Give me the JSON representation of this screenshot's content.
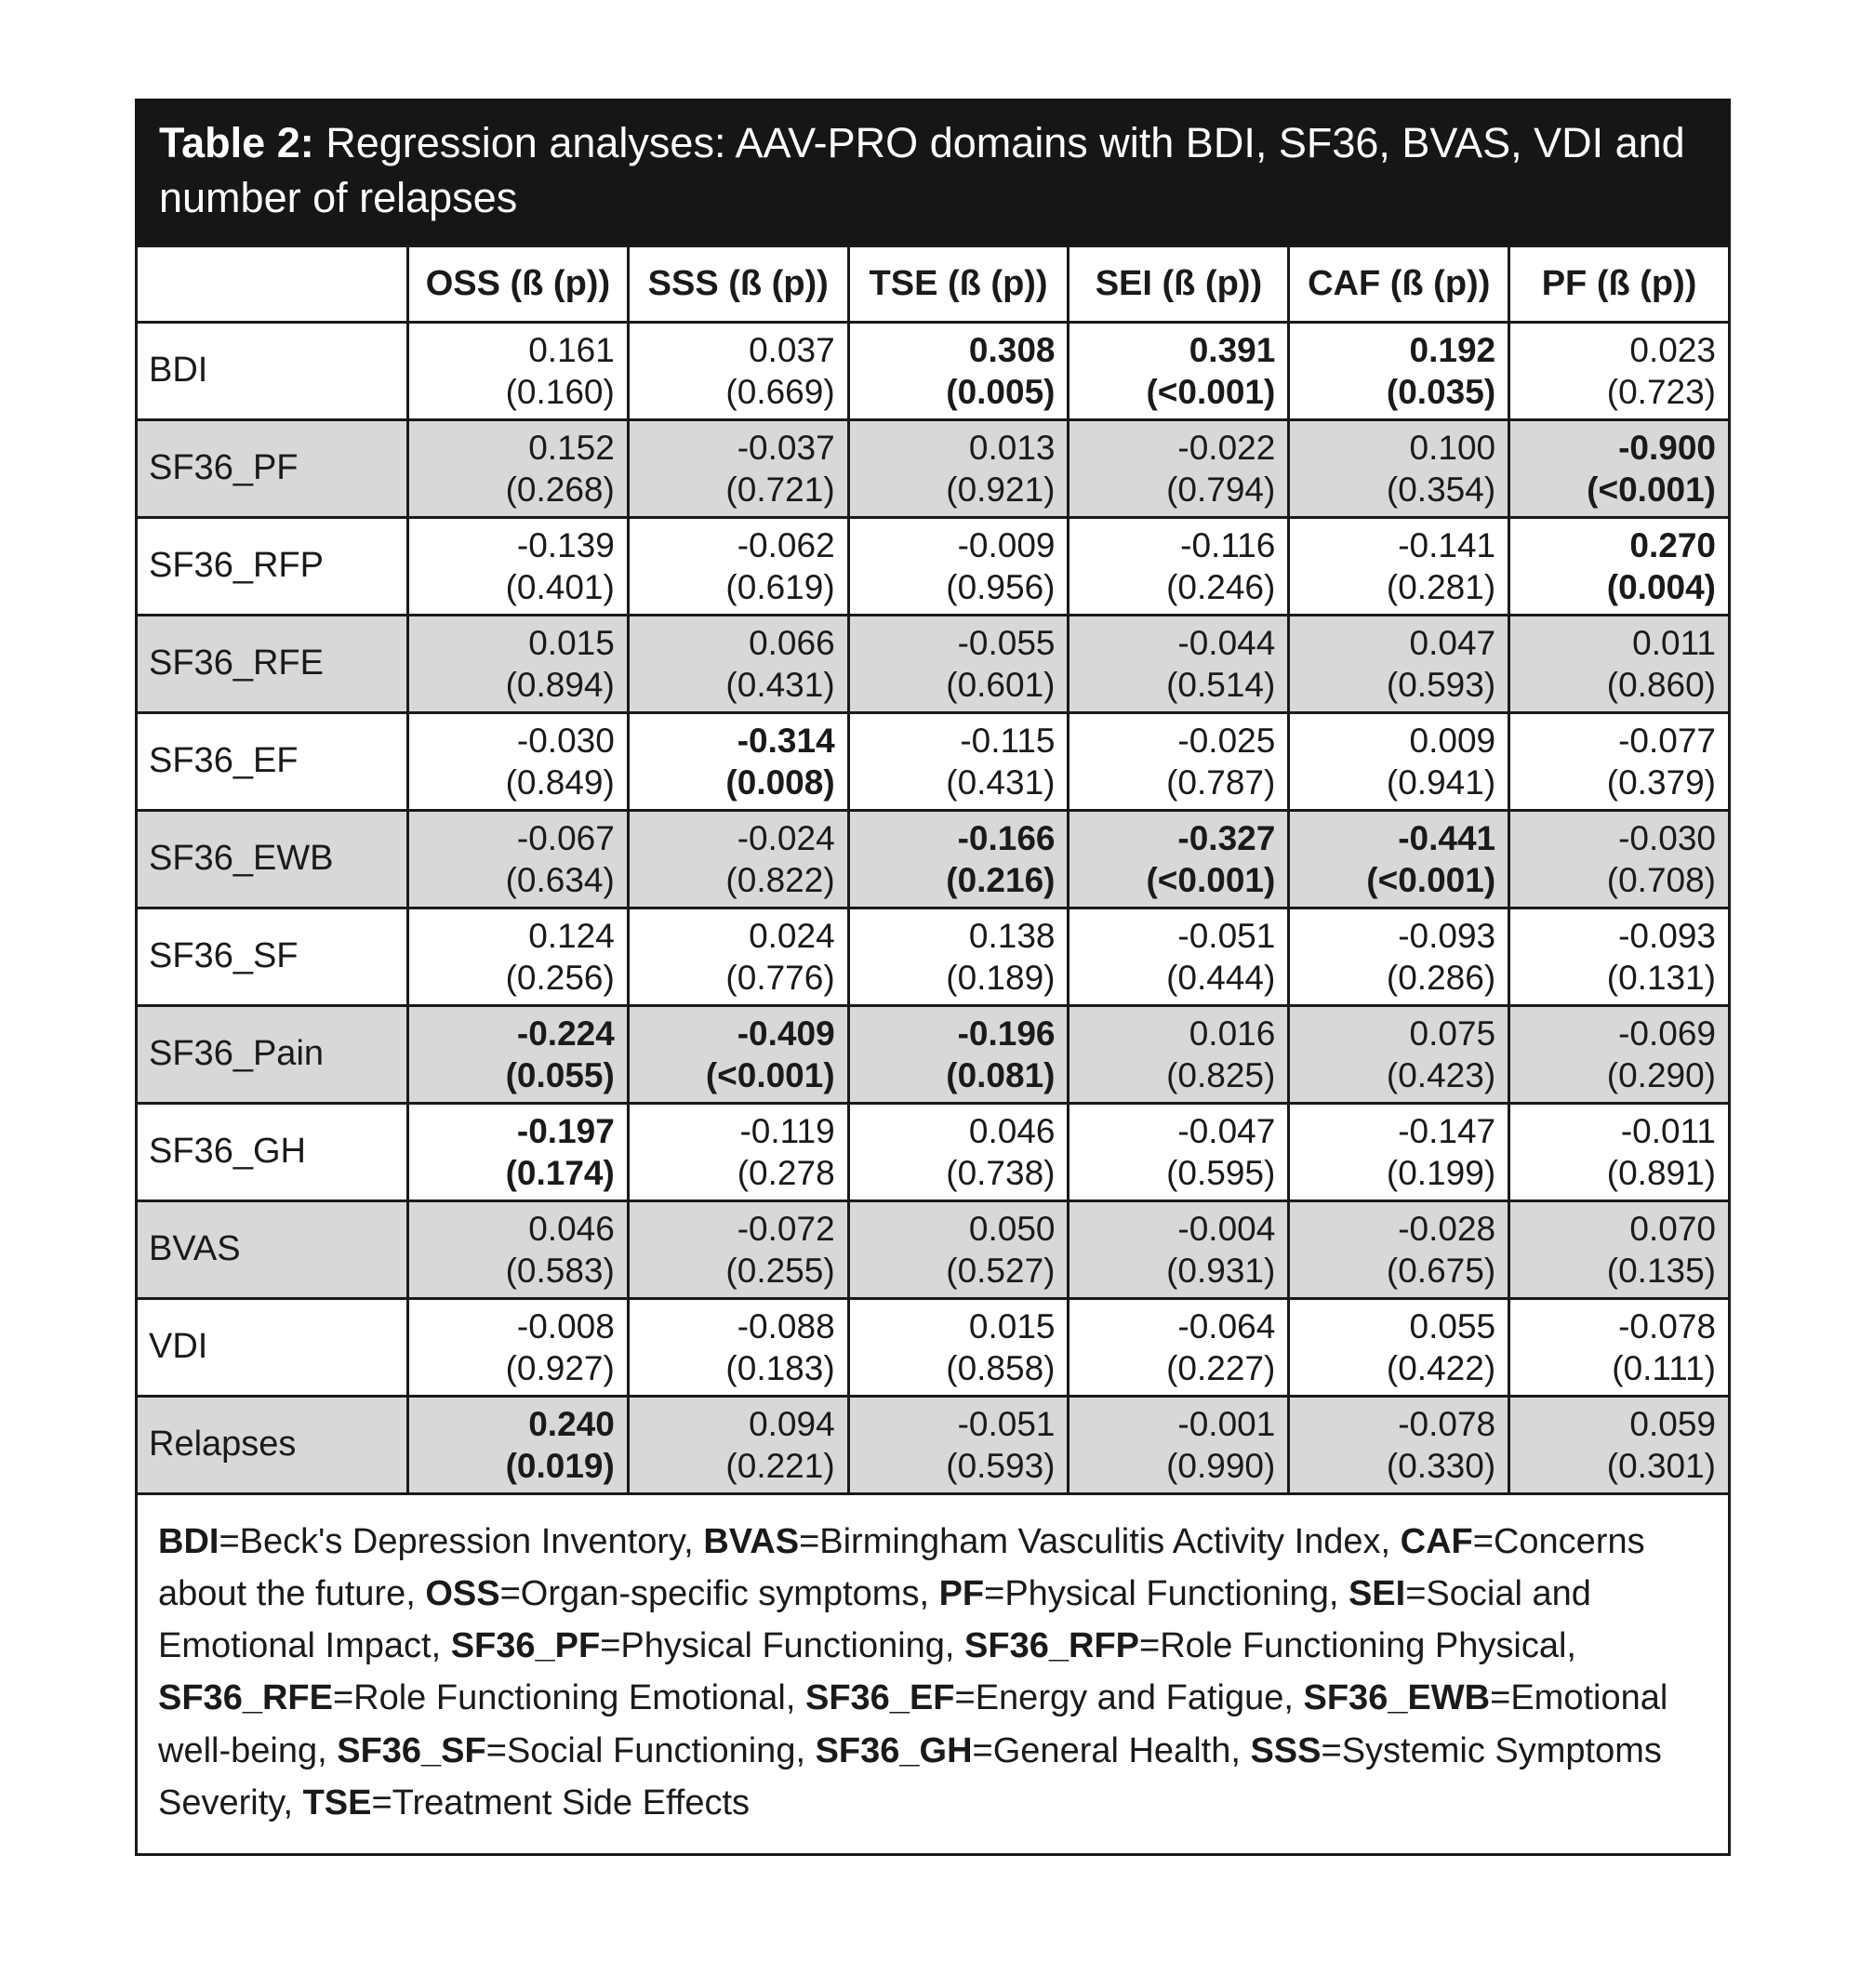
{
  "colors": {
    "title_bg": "#161616",
    "row_shade": "#d8d8d8",
    "border_ink": "#1a1a1a"
  },
  "title": {
    "label": "Table 2:",
    "rest": " Regression analyses: AAV-PRO domains with BDI, SF36, BVAS, VDI and number of relapses"
  },
  "table": {
    "header": [
      "",
      "OSS (ß (p))",
      "SSS (ß (p))",
      "TSE (ß (p))",
      "SEI (ß (p))",
      "CAF (ß (p))",
      "PF (ß (p))"
    ],
    "rows": [
      {
        "label": "BDI",
        "shaded": false,
        "cells": [
          {
            "beta": "0.161",
            "p": "(0.160)",
            "bold": false
          },
          {
            "beta": "0.037",
            "p": "(0.669)",
            "bold": false
          },
          {
            "beta": "0.308",
            "p": "(0.005)",
            "bold": true
          },
          {
            "beta": "0.391",
            "p": "(<0.001)",
            "bold": true
          },
          {
            "beta": "0.192",
            "p": "(0.035)",
            "bold": true
          },
          {
            "beta": "0.023",
            "p": "(0.723)",
            "bold": false
          }
        ]
      },
      {
        "label": "SF36_PF",
        "shaded": true,
        "cells": [
          {
            "beta": "0.152",
            "p": "(0.268)",
            "bold": false
          },
          {
            "beta": "-0.037",
            "p": "(0.721)",
            "bold": false
          },
          {
            "beta": "0.013",
            "p": "(0.921)",
            "bold": false
          },
          {
            "beta": "-0.022",
            "p": "(0.794)",
            "bold": false
          },
          {
            "beta": "0.100",
            "p": "(0.354)",
            "bold": false
          },
          {
            "beta": "-0.900",
            "p": "(<0.001)",
            "bold": true
          }
        ]
      },
      {
        "label": "SF36_RFP",
        "shaded": false,
        "cells": [
          {
            "beta": "-0.139",
            "p": "(0.401)",
            "bold": false
          },
          {
            "beta": "-0.062",
            "p": "(0.619)",
            "bold": false
          },
          {
            "beta": "-0.009",
            "p": "(0.956)",
            "bold": false
          },
          {
            "beta": "-0.116",
            "p": "(0.246)",
            "bold": false
          },
          {
            "beta": "-0.141",
            "p": "(0.281)",
            "bold": false
          },
          {
            "beta": "0.270",
            "p": "(0.004)",
            "bold": true
          }
        ]
      },
      {
        "label": "SF36_RFE",
        "shaded": true,
        "cells": [
          {
            "beta": "0.015",
            "p": "(0.894)",
            "bold": false
          },
          {
            "beta": "0.066",
            "p": "(0.431)",
            "bold": false
          },
          {
            "beta": "-0.055",
            "p": "(0.601)",
            "bold": false
          },
          {
            "beta": "-0.044",
            "p": "(0.514)",
            "bold": false
          },
          {
            "beta": "0.047",
            "p": "(0.593)",
            "bold": false
          },
          {
            "beta": "0.011",
            "p": "(0.860)",
            "bold": false
          }
        ]
      },
      {
        "label": "SF36_EF",
        "shaded": false,
        "cells": [
          {
            "beta": "-0.030",
            "p": "(0.849)",
            "bold": false
          },
          {
            "beta": "-0.314",
            "p": "(0.008)",
            "bold": true
          },
          {
            "beta": "-0.115",
            "p": "(0.431)",
            "bold": false
          },
          {
            "beta": "-0.025",
            "p": "(0.787)",
            "bold": false
          },
          {
            "beta": "0.009",
            "p": "(0.941)",
            "bold": false
          },
          {
            "beta": "-0.077",
            "p": "(0.379)",
            "bold": false
          }
        ]
      },
      {
        "label": "SF36_EWB",
        "shaded": true,
        "cells": [
          {
            "beta": "-0.067",
            "p": "(0.634)",
            "bold": false
          },
          {
            "beta": "-0.024",
            "p": "(0.822)",
            "bold": false
          },
          {
            "beta": "-0.166",
            "p": "(0.216)",
            "bold": true
          },
          {
            "beta": "-0.327",
            "p": "(<0.001)",
            "bold": true
          },
          {
            "beta": "-0.441",
            "p": "(<0.001)",
            "bold": true
          },
          {
            "beta": "-0.030",
            "p": "(0.708)",
            "bold": false
          }
        ]
      },
      {
        "label": "SF36_SF",
        "shaded": false,
        "cells": [
          {
            "beta": "0.124",
            "p": "(0.256)",
            "bold": false
          },
          {
            "beta": "0.024",
            "p": "(0.776)",
            "bold": false
          },
          {
            "beta": "0.138",
            "p": "(0.189)",
            "bold": false
          },
          {
            "beta": "-0.051",
            "p": "(0.444)",
            "bold": false
          },
          {
            "beta": "-0.093",
            "p": "(0.286)",
            "bold": false
          },
          {
            "beta": "-0.093",
            "p": "(0.131)",
            "bold": false
          }
        ]
      },
      {
        "label": "SF36_Pain",
        "shaded": true,
        "cells": [
          {
            "beta": "-0.224",
            "p": "(0.055)",
            "bold": true
          },
          {
            "beta": "-0.409",
            "p": "(<0.001)",
            "bold": true
          },
          {
            "beta": "-0.196",
            "p": "(0.081)",
            "bold": true
          },
          {
            "beta": "0.016",
            "p": "(0.825)",
            "bold": false
          },
          {
            "beta": "0.075",
            "p": "(0.423)",
            "bold": false
          },
          {
            "beta": "-0.069",
            "p": "(0.290)",
            "bold": false
          }
        ]
      },
      {
        "label": "SF36_GH",
        "shaded": false,
        "cells": [
          {
            "beta": "-0.197",
            "p": "(0.174)",
            "bold": true
          },
          {
            "beta": "-0.119",
            "p": "(0.278",
            "bold": false
          },
          {
            "beta": "0.046",
            "p": "(0.738)",
            "bold": false
          },
          {
            "beta": "-0.047",
            "p": "(0.595)",
            "bold": false
          },
          {
            "beta": "-0.147",
            "p": "(0.199)",
            "bold": false
          },
          {
            "beta": "-0.011",
            "p": "(0.891)",
            "bold": false
          }
        ]
      },
      {
        "label": "BVAS",
        "shaded": true,
        "cells": [
          {
            "beta": "0.046",
            "p": "(0.583)",
            "bold": false
          },
          {
            "beta": "-0.072",
            "p": "(0.255)",
            "bold": false
          },
          {
            "beta": "0.050",
            "p": "(0.527)",
            "bold": false
          },
          {
            "beta": "-0.004",
            "p": "(0.931)",
            "bold": false
          },
          {
            "beta": "-0.028",
            "p": "(0.675)",
            "bold": false
          },
          {
            "beta": "0.070",
            "p": "(0.135)",
            "bold": false
          }
        ]
      },
      {
        "label": "VDI",
        "shaded": false,
        "cells": [
          {
            "beta": "-0.008",
            "p": "(0.927)",
            "bold": false
          },
          {
            "beta": "-0.088",
            "p": "(0.183)",
            "bold": false
          },
          {
            "beta": "0.015",
            "p": "(0.858)",
            "bold": false
          },
          {
            "beta": "-0.064",
            "p": "(0.227)",
            "bold": false
          },
          {
            "beta": "0.055",
            "p": "(0.422)",
            "bold": false
          },
          {
            "beta": "-0.078",
            "p": "(0.111)",
            "bold": false
          }
        ]
      },
      {
        "label": "Relapses",
        "shaded": true,
        "cells": [
          {
            "beta": "0.240",
            "p": "(0.019)",
            "bold": true
          },
          {
            "beta": "0.094",
            "p": "(0.221)",
            "bold": false
          },
          {
            "beta": "-0.051",
            "p": "(0.593)",
            "bold": false
          },
          {
            "beta": "-0.001",
            "p": "(0.990)",
            "bold": false
          },
          {
            "beta": "-0.078",
            "p": "(0.330)",
            "bold": false
          },
          {
            "beta": "0.059",
            "p": "(0.301)",
            "bold": false
          }
        ]
      }
    ]
  },
  "footnote": {
    "segments": [
      {
        "text": "BDI",
        "bold": true
      },
      {
        "text": "=Beck's Depression Inventory, ",
        "bold": false
      },
      {
        "text": "BVAS",
        "bold": true
      },
      {
        "text": "=Birmingham Vasculitis Activity Index, ",
        "bold": false
      },
      {
        "text": "CAF",
        "bold": true
      },
      {
        "text": "=Concerns about the future, ",
        "bold": false
      },
      {
        "text": "OSS",
        "bold": true
      },
      {
        "text": "=Organ-specific symptoms, ",
        "bold": false
      },
      {
        "text": "PF",
        "bold": true
      },
      {
        "text": "=Physical Functioning, ",
        "bold": false
      },
      {
        "text": "SEI",
        "bold": true
      },
      {
        "text": "=Social and Emotional Impact, ",
        "bold": false
      },
      {
        "text": "SF36_PF",
        "bold": true
      },
      {
        "text": "=Physical Functioning, ",
        "bold": false
      },
      {
        "text": "SF36_RFP",
        "bold": true
      },
      {
        "text": "=Role Functioning Physical, ",
        "bold": false
      },
      {
        "text": "SF36_RFE",
        "bold": true
      },
      {
        "text": "=Role Functioning Emotional, ",
        "bold": false
      },
      {
        "text": "SF36_EF",
        "bold": true
      },
      {
        "text": "=Energy and Fatigue, ",
        "bold": false
      },
      {
        "text": "SF36_EWB",
        "bold": true
      },
      {
        "text": "=Emotional well-being, ",
        "bold": false
      },
      {
        "text": "SF36_SF",
        "bold": true
      },
      {
        "text": "=Social Functioning, ",
        "bold": false
      },
      {
        "text": "SF36_GH",
        "bold": true
      },
      {
        "text": "=General Health, ",
        "bold": false
      },
      {
        "text": "SSS",
        "bold": true
      },
      {
        "text": "=Systemic Symptoms Severity, ",
        "bold": false
      },
      {
        "text": "TSE",
        "bold": true
      },
      {
        "text": "=Treatment Side Effects",
        "bold": false
      }
    ]
  }
}
